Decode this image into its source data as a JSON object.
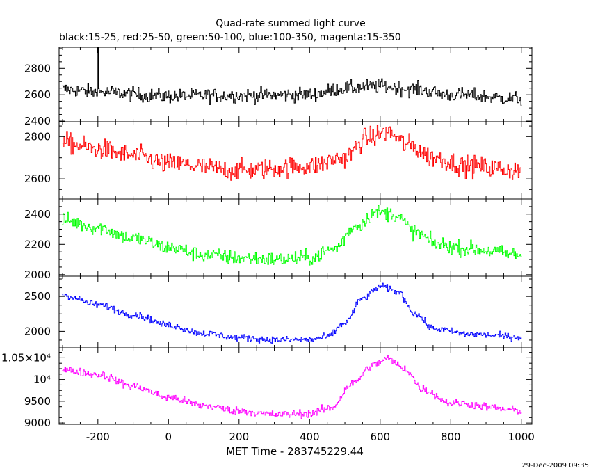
{
  "chart_data": {
    "type": "line",
    "title": "Quad-rate summed light curve",
    "subtitle": "black:15-25, red:25-50, green:50-100, blue:100-350, magenta:15-350",
    "xlabel": "MET Time - 283745229.44",
    "timestamp": "29-Dec-2009 09:35",
    "xlim": [
      -310,
      1030
    ],
    "x_ticks": [
      -200,
      0,
      200,
      400,
      600,
      800,
      1000
    ],
    "x_tick_labels": [
      "-200",
      "0",
      "200",
      "400",
      "600",
      "800",
      "1000"
    ],
    "bin_width": 2.5,
    "grid": false,
    "panels": [
      {
        "name": "black:15-25",
        "color": "#000000",
        "ylim": [
          2395,
          2960
        ],
        "y_ticks": [
          2400,
          2600,
          2800
        ],
        "y_tick_labels": [
          "2400",
          "2600",
          "2800"
        ],
        "profile": {
          "points": [
            [
              -300,
              2640
            ],
            [
              -200,
              2620
            ],
            [
              0,
              2590
            ],
            [
              200,
              2595
            ],
            [
              400,
              2600
            ],
            [
              500,
              2650
            ],
            [
              600,
              2665
            ],
            [
              700,
              2640
            ],
            [
              800,
              2600
            ],
            [
              1000,
              2570
            ]
          ],
          "noise": 50,
          "spikes": [
            [
              -200,
              2960
            ]
          ]
        }
      },
      {
        "name": "red:25-50",
        "color": "#ff0000",
        "ylim": [
          2505,
          2870
        ],
        "y_ticks": [
          2600,
          2800
        ],
        "y_tick_labels": [
          "2600",
          "2800"
        ],
        "profile": {
          "points": [
            [
              -300,
              2770
            ],
            [
              -200,
              2740
            ],
            [
              -100,
              2710
            ],
            [
              0,
              2670
            ],
            [
              200,
              2640
            ],
            [
              400,
              2660
            ],
            [
              500,
              2700
            ],
            [
              560,
              2790
            ],
            [
              620,
              2820
            ],
            [
              680,
              2760
            ],
            [
              750,
              2700
            ],
            [
              850,
              2660
            ],
            [
              1000,
              2640
            ]
          ],
          "noise": 45,
          "spikes": []
        }
      },
      {
        "name": "green:50-100",
        "color": "#00ff00",
        "ylim": [
          1990,
          2500
        ],
        "y_ticks": [
          2000,
          2200,
          2400
        ],
        "y_tick_labels": [
          "2000",
          "2200",
          "2400"
        ],
        "profile": {
          "points": [
            [
              -300,
              2360
            ],
            [
              -200,
              2310
            ],
            [
              -100,
              2240
            ],
            [
              0,
              2180
            ],
            [
              100,
              2130
            ],
            [
              200,
              2110
            ],
            [
              300,
              2100
            ],
            [
              400,
              2110
            ],
            [
              470,
              2170
            ],
            [
              530,
              2320
            ],
            [
              590,
              2410
            ],
            [
              640,
              2400
            ],
            [
              700,
              2280
            ],
            [
              760,
              2200
            ],
            [
              850,
              2170
            ],
            [
              1000,
              2130
            ]
          ],
          "noise": 45,
          "spikes": []
        }
      },
      {
        "name": "blue:100-350",
        "color": "#0000ff",
        "ylim": [
          1765,
          2790
        ],
        "y_ticks": [
          2000,
          2500
        ],
        "y_tick_labels": [
          "2000",
          "2500"
        ],
        "profile": {
          "points": [
            [
              -300,
              2520
            ],
            [
              -200,
              2380
            ],
            [
              -100,
              2240
            ],
            [
              0,
              2090
            ],
            [
              100,
              1970
            ],
            [
              200,
              1910
            ],
            [
              300,
              1880
            ],
            [
              400,
              1880
            ],
            [
              450,
              1920
            ],
            [
              500,
              2120
            ],
            [
              550,
              2470
            ],
            [
              600,
              2640
            ],
            [
              650,
              2570
            ],
            [
              700,
              2250
            ],
            [
              750,
              2040
            ],
            [
              850,
              1960
            ],
            [
              1000,
              1920
            ]
          ],
          "noise": 45,
          "spikes": []
        }
      },
      {
        "name": "magenta:15-350",
        "color": "#ff00ff",
        "ylim": [
          8970,
          10730
        ],
        "y_ticks": [
          9000,
          9500,
          10000,
          10500
        ],
        "y_tick_labels": [
          "9000",
          "9500",
          "10⁴",
          "1.05×10⁴"
        ],
        "profile": {
          "points": [
            [
              -300,
              10220
            ],
            [
              -200,
              10120
            ],
            [
              -100,
              9850
            ],
            [
              0,
              9590
            ],
            [
              100,
              9400
            ],
            [
              200,
              9280
            ],
            [
              300,
              9190
            ],
            [
              400,
              9220
            ],
            [
              460,
              9340
            ],
            [
              520,
              9900
            ],
            [
              580,
              10330
            ],
            [
              620,
              10480
            ],
            [
              670,
              10250
            ],
            [
              720,
              9780
            ],
            [
              800,
              9460
            ],
            [
              1000,
              9290
            ]
          ],
          "noise": 85,
          "spikes": []
        }
      }
    ]
  }
}
